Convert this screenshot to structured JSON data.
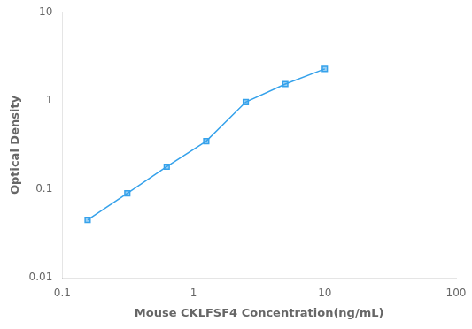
{
  "chart_data": {
    "type": "line",
    "x": [
      0.156,
      0.313,
      0.625,
      1.25,
      2.5,
      5.0,
      10.0
    ],
    "values": [
      0.045,
      0.09,
      0.18,
      0.35,
      0.97,
      1.55,
      2.3
    ],
    "xlabel": "Mouse CKLFSF4 Concentration(ng/mL)",
    "ylabel": "Optical Density",
    "xlim": [
      0.1,
      100
    ],
    "ylim": [
      0.01,
      10
    ],
    "xticks": [
      0.1,
      1,
      10,
      100
    ],
    "yticks": [
      0.01,
      0.1,
      1,
      10
    ],
    "log": true,
    "grid": false,
    "marker": "square"
  }
}
